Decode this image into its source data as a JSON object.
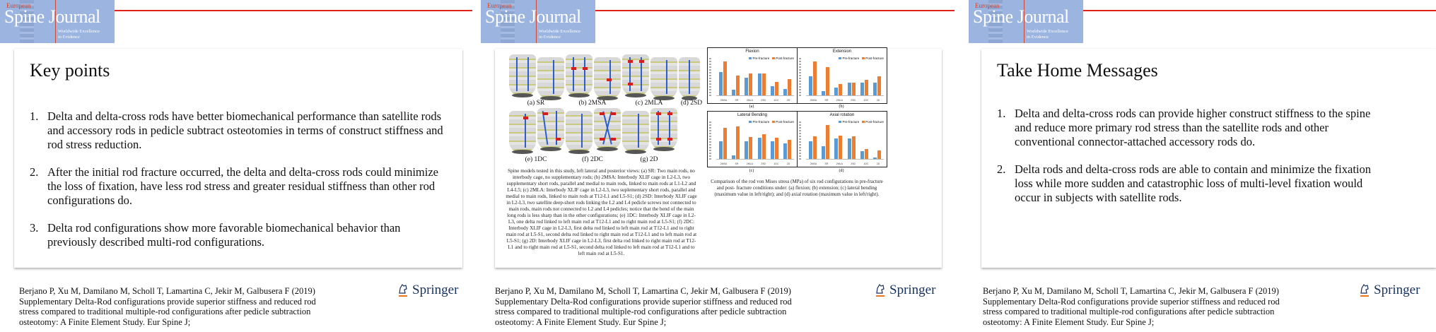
{
  "journal_logo": {
    "line1": "European",
    "line2": "Spine Journal",
    "tagline1": "Worldwide Excellence",
    "tagline2": "in Evidence",
    "accent": "#e2231a",
    "logo_bg": "#9bb4e0"
  },
  "citation": {
    "text": "Berjano P, Xu M, Damilano M, Scholl T, Lamartina C, Jekir M, Galbusera F (2019) Supplementary Delta-Rod configurations provide superior stiffness and reduced rod stress compared to traditional multiple-rod configurations after pedicle subtraction osteotomy: A Finite Element Study. Eur Spine J;",
    "line1": "Berjano P, Xu M, Damilano M, Scholl T, Lamartina C, Jekir M, Galbusera F (2019)",
    "line2": "Supplementary Delta-Rod configurations provide superior stiffness and reduced rod",
    "line3": "stress compared to traditional multiple-rod configurations after pedicle subtraction",
    "line4": "osteotomy: A Finite Element Study. Eur Spine J;"
  },
  "publisher": {
    "name": "Springer",
    "icon": "springer-horse-icon",
    "color": "#17325e",
    "underline": "#e8741c"
  },
  "slides": [
    {
      "title": "Key points",
      "points": [
        {
          "num": "1.",
          "text": "Delta and delta-cross rods have better biomechanical performance than satellite rods and accessory rods in pedicle subtract osteotomies in terms of construct stiffness and rod stress reduction."
        },
        {
          "num": "2.",
          "text": "After the initial rod fracture occurred, the delta and delta-cross rods could minimize the loss of fixation, have less rod stress and greater residual stiffness than other rod configurations do."
        },
        {
          "num": "3.",
          "text": "Delta rod configurations show more favorable biomechanical behavior than previously described multi-rod configurations."
        }
      ]
    },
    {
      "figure_labels": [
        "(a) SR",
        "(b) 2MSA",
        "(c) 2MLA",
        "(d) 2SD",
        "(e) 1DC",
        "(f) 2DC",
        "(g) 2D"
      ],
      "figure_caption": "Spine models tested in this study, left lateral and posterior views: (a) SR: Two main rods, no interbody cage, no supplementary rods; (b) 2MSA: Interbody XLIF cage in L2-L3, two supplementary short rods, parallel and medial to main rods, linked to main rods at L1-L2 and L4-L5; (c) 2MLA: Interbody XLIF cage in L2-L3, two suplementary short rods, parallel and medial to main rods, linked to main rods at T12-L1 and L5-S1; (d) 2SD: Interbody XLIF cage in L2-L3, two satellite deep-short rods linking the L2 and L4 pedicle screws not connected to main rods, main rods not connected to L2 and L4 pedicles; notice that the bend of the main long rods is less sharp than in the other configurations; (e) 1DC: Interbody XLIF cage in L2-L3, one delta rod linked to left main rod at T12-L1 and to right main rod at L5-S1; (f) 2DC: Interbody XLIF cage in L2-L3, first delta rod linked to left main rod at T12-L1 and to right main rod at L5-S1, second delta rod linked to right main rod at T12-L1 and to left main rod at L5-S1; (g) 2D: Interbody XLIF cage in L2-L3, first delta rod linked to right main rod at T12-L1 and to right main rod at L5-S1, second delta rod linked to left main rod at T12-L1 and to left main rod at L5-S1.",
      "chart_caption": "Comparison of the rod von Mises stress (MPa) of six rod configurations in pre-fracture and post- fracture conditions under: (a) flexion; (b) extension; (c) lateral bending (maximum value in left/right); and (d) axial rotation (maximum value in left/right).",
      "subfigure_labels": [
        "(a)",
        "(b)",
        "(c)",
        "(d)"
      ]
    },
    {
      "title": "Take Home Messages",
      "points": [
        {
          "num": "1.",
          "text": "Delta and delta-cross rods can provide higher construct stiffness to the spine and reduce more primary rod stress than the satellite rods and other conventional connector-attached accessory rods do."
        },
        {
          "num": "2.",
          "text": "Delta rods and delta-cross rods are able to contain and minimize the fixation loss while more sudden and catastrophic loss of multi-level fixation would occur in subjects with satellite rods."
        }
      ]
    }
  ],
  "chart_data": [
    {
      "type": "bar",
      "title": "Flexion",
      "subfigure": "(a)",
      "categories": [
        "2MSA",
        "SR",
        "2MLA",
        "2SD",
        "1DC",
        "2D"
      ],
      "series": [
        {
          "name": "Pre-fracture",
          "color": "#5b9bd5",
          "values": [
            68,
            17,
            52,
            64,
            27,
            18
          ]
        },
        {
          "name": "Post-fracture",
          "color": "#ed7d31",
          "values": [
            100,
            57,
            64,
            65,
            40,
            48
          ]
        }
      ],
      "ylabel": "Maximum von Mises stress (MPa)",
      "ylim": [
        0,
        100
      ],
      "legend": "top-right"
    },
    {
      "type": "bar",
      "title": "Extension",
      "subfigure": "(b)",
      "categories": [
        "2MSA",
        "SR",
        "2MLA",
        "2SD",
        "1DC",
        "2D"
      ],
      "series": [
        {
          "name": "Pre-fracture",
          "color": "#5b9bd5",
          "values": [
            55,
            12,
            22,
            38,
            37,
            38
          ]
        },
        {
          "name": "Post-fracture",
          "color": "#ed7d31",
          "values": [
            100,
            82,
            34,
            38,
            46,
            55
          ]
        }
      ],
      "ylabel": "Maximum von Mises stress (MPa)",
      "ylim": [
        0,
        100
      ],
      "legend": "top-right"
    },
    {
      "type": "bar",
      "title": "Lateral Bending",
      "subfigure": "(c)",
      "categories": [
        "2MSA",
        "SR",
        "2MLA",
        "2SD",
        "1DC",
        "2D"
      ],
      "series": [
        {
          "name": "Pre-fracture",
          "color": "#5b9bd5",
          "values": [
            52,
            10,
            52,
            62,
            52,
            46
          ]
        },
        {
          "name": "Post-fracture",
          "color": "#ed7d31",
          "values": [
            90,
            95,
            64,
            72,
            61,
            55
          ]
        }
      ],
      "ylabel": "Maximum von Mises stress (MPa)",
      "ylim": [
        0,
        100
      ],
      "legend": "top-right"
    },
    {
      "type": "bar",
      "title": "Axial rotation",
      "subfigure": "(d)",
      "categories": [
        "2MSA",
        "SR",
        "2MLA",
        "2SD",
        "1DC",
        "2D"
      ],
      "series": [
        {
          "name": "Pre-fracture",
          "color": "#5b9bd5",
          "values": [
            52,
            37,
            60,
            60,
            22,
            5
          ]
        },
        {
          "name": "Post-fracture",
          "color": "#ed7d31",
          "values": [
            67,
            100,
            68,
            67,
            28,
            25
          ]
        }
      ],
      "ylabel": "Maximum von Mises stress (MPa)",
      "ylim": [
        0,
        100
      ],
      "legend": "top-right"
    }
  ]
}
